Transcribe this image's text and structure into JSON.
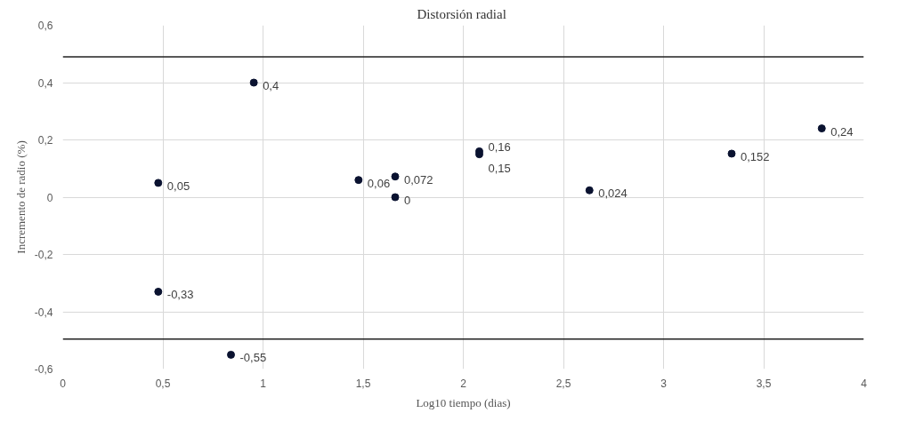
{
  "chart_data": {
    "type": "scatter",
    "title": "Distorsión  radial",
    "xlabel": "Log10 tiempo (dias)",
    "ylabel": "Incremento de radio (%)",
    "x": [
      0.477,
      0.477,
      0.84,
      0.954,
      1.477,
      1.66,
      1.66,
      2.08,
      2.08,
      2.63,
      3.34,
      3.79
    ],
    "series": [
      {
        "color": "#0a1230",
        "values": [
          0.05,
          -0.33,
          -0.55,
          0.4,
          0.06,
          0.072,
          0,
          0.16,
          0.15,
          0.024,
          0.152,
          0.24
        ],
        "value_labels": [
          "0,05",
          "-0,33",
          "-0,55",
          "0,4",
          "0,06",
          "0,072",
          "0",
          "0,16",
          "0,15",
          "0,024",
          "0,152",
          "0,24"
        ]
      }
    ],
    "xlim": [
      0,
      4
    ],
    "ylim": [
      -0.6,
      0.6
    ],
    "xticks": [
      0,
      {
        "value": 0.5,
        "label": "0,5"
      },
      1,
      {
        "value": 1.5,
        "label": "1,5"
      },
      2,
      {
        "value": 2.5,
        "label": "2,5"
      },
      3,
      {
        "value": 3.5,
        "label": "3,5"
      },
      4
    ],
    "yticks": [
      {
        "value": -0.6,
        "label": "-0,6"
      },
      {
        "value": -0.4,
        "label": "-0,4"
      },
      {
        "value": -0.2,
        "label": "-0,2"
      },
      0,
      {
        "value": 0.2,
        "label": "0,2"
      },
      {
        "value": 0.4,
        "label": "0,4"
      },
      {
        "value": 0.6,
        "label": "0,6"
      }
    ],
    "ref_lines": [
      {
        "axis": "y",
        "value": 0.49,
        "color": "#202020"
      },
      {
        "axis": "y",
        "value": -0.495,
        "color": "#202020"
      }
    ],
    "grid": true,
    "marker": "circle"
  }
}
